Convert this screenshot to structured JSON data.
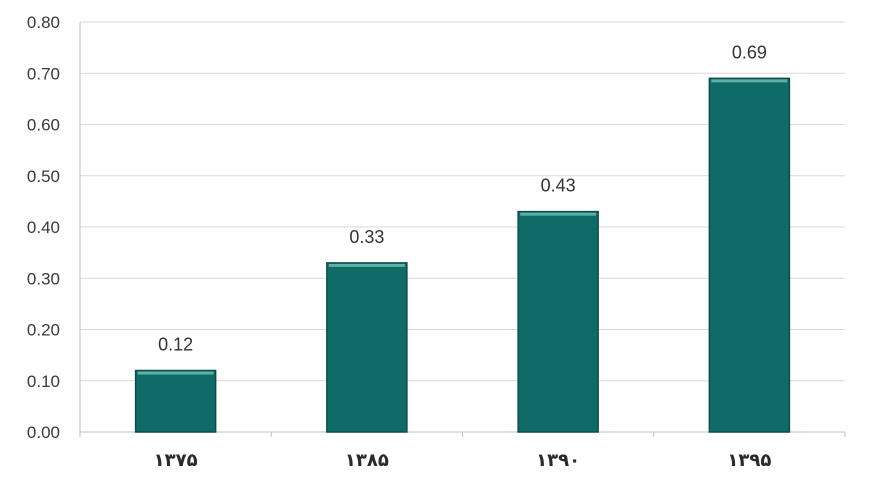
{
  "chart_data": {
    "type": "bar",
    "categories": [
      "۱۳۷۵",
      "۱۳۸۵",
      "۱۳۹۰",
      "۱۳۹۵"
    ],
    "series": [
      {
        "values": [
          0.12,
          0.33,
          0.43,
          0.69
        ],
        "data_labels": [
          "0.12",
          "0.33",
          "0.43",
          "0.69"
        ]
      }
    ],
    "ylim": [
      0,
      0.8
    ],
    "yticks": [
      0,
      0.1,
      0.2,
      0.3,
      0.4,
      0.5,
      0.6,
      0.7,
      0.8
    ],
    "ytick_labels": [
      "0.00",
      "0.10",
      "0.20",
      "0.30",
      "0.40",
      "0.50",
      "0.60",
      "0.70",
      "0.80"
    ],
    "grid": true,
    "legend": "none",
    "colors": {
      "bar": "#0f6b68",
      "bar_edge": "#0a4c4a",
      "bar_highlight": "#5fb0a8",
      "grid": "#d9d9d9",
      "axis": "#bfbfbf"
    }
  }
}
